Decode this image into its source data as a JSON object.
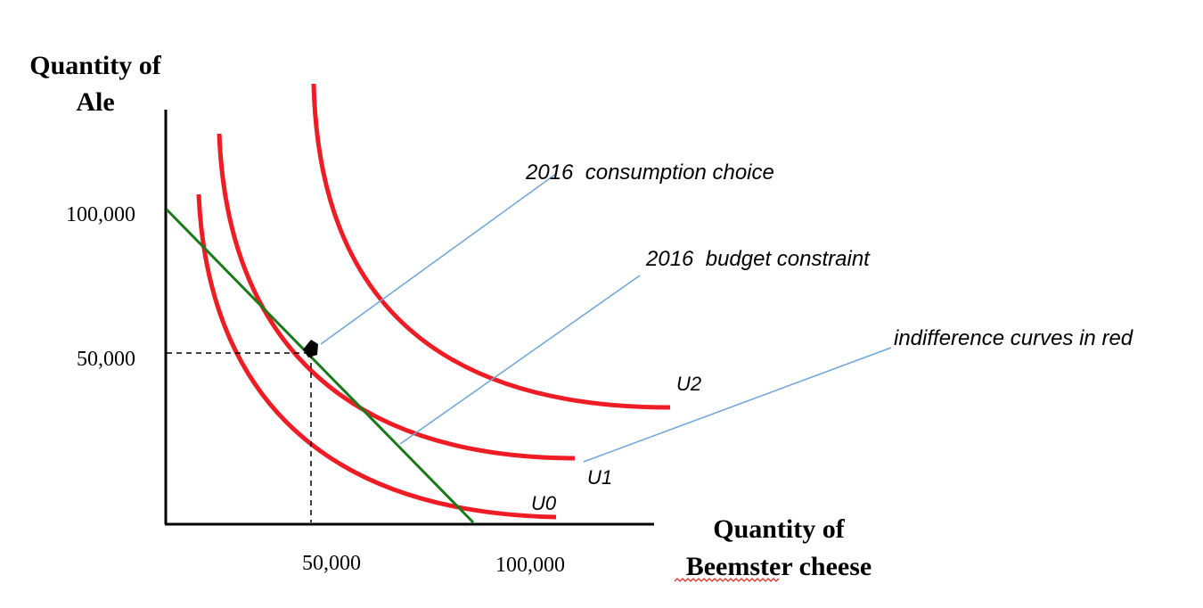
{
  "axes": {
    "y_title_line1": "Quantity of",
    "y_title_line2": "Ale",
    "x_title_line1": "Quantity of",
    "x_title_line2": "Beemster cheese",
    "y_ticks": [
      "100,000",
      "50,000"
    ],
    "x_ticks": [
      "50,000",
      "100,000"
    ]
  },
  "curves": {
    "u0": "U0",
    "u1": "U1",
    "u2": "U2"
  },
  "annotations": {
    "choice": "2016  consumption choice",
    "budget": "2016  budget constraint",
    "indifference": "indifference curves in red"
  },
  "colors": {
    "indifference_curve": "#ee1c25",
    "budget_line": "#1a7a1a",
    "pointer_line": "#6fa6d6"
  }
}
